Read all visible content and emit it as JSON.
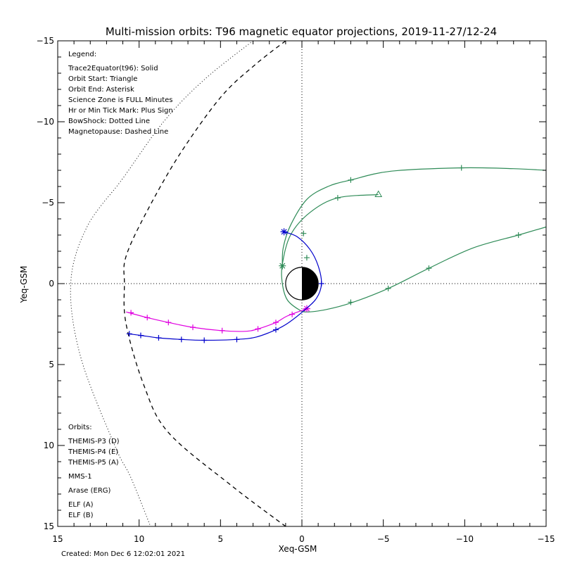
{
  "chart_data": {
    "type": "line",
    "title": "Multi-mission orbits: T96 magnetic equator projections, 2019-11-27/12-24",
    "xlabel": "Xeq-GSM",
    "ylabel": "Yeq-GSM",
    "xlim": [
      15,
      -15
    ],
    "ylim": [
      -15,
      15
    ],
    "x_ticks": [
      15,
      10,
      5,
      0,
      -5,
      -10,
      -15
    ],
    "y_ticks": [
      -15,
      -10,
      -5,
      0,
      5,
      10,
      15
    ],
    "legend_title": "Legend:",
    "legend_lines": [
      "Trace2Equator(t96): Solid",
      "Orbit Start: Triangle",
      "Orbit End: Asterisk",
      "Science Zone is FULL Minutes",
      "Hr or Min Tick Mark: Plus Sign",
      "BowShock: Dotted Line",
      "Magnetopause: Dashed Line"
    ],
    "orbits_title": "Orbits:",
    "orbits": [
      {
        "name": "THEMIS-P3 (D)",
        "color": "#00c8d8"
      },
      {
        "name": "THEMIS-P4 (E)",
        "color": "#0000cc"
      },
      {
        "name": "THEMIS-P5 (A)",
        "color": "#e000e0"
      },
      {
        "name": "MMS-1",
        "color": "#000000"
      },
      {
        "name": "Arase (ERG)",
        "color": "#2e8b57"
      },
      {
        "name": "ELF (A)",
        "color": "#3399ff"
      },
      {
        "name": "ELF (B)",
        "color": "#e01010"
      }
    ],
    "footer": "Created: Mon Dec  6 12:02:01 2021",
    "bow_shock": [
      [
        3.0,
        -15.0
      ],
      [
        6.0,
        -12.6
      ],
      [
        8.5,
        -10.0
      ],
      [
        11.0,
        -6.5
      ],
      [
        13.2,
        -3.5
      ],
      [
        14.2,
        0.0
      ],
      [
        13.6,
        4.5
      ],
      [
        11.5,
        10.0
      ],
      [
        10.5,
        12.0
      ],
      [
        9.3,
        15.0
      ]
    ],
    "magnetopause": [
      [
        1.0,
        -15.0
      ],
      [
        2.9,
        -13.5
      ],
      [
        5.0,
        -11.5
      ],
      [
        7.5,
        -8.0
      ],
      [
        9.5,
        -4.5
      ],
      [
        10.8,
        -1.7
      ],
      [
        10.9,
        0.0
      ],
      [
        10.8,
        2.5
      ],
      [
        9.7,
        6.3
      ],
      [
        8.2,
        9.2
      ],
      [
        4.3,
        12.5
      ],
      [
        1.0,
        15.0
      ]
    ],
    "series": [
      {
        "name": "Arase (ERG)",
        "color": "#2e8b57",
        "points": [
          [
            -4.7,
            -5.5
          ],
          [
            -2.2,
            -5.3
          ],
          [
            -0.5,
            -4.4
          ],
          [
            0.7,
            -3.0
          ],
          [
            1.2,
            -1.2
          ],
          [
            1.2,
            0.0
          ],
          [
            0.9,
            1.0
          ],
          [
            0.2,
            1.6
          ],
          [
            -0.3,
            1.75
          ],
          [
            -1.5,
            1.6
          ],
          [
            -3.0,
            1.2
          ],
          [
            -5.3,
            0.3
          ],
          [
            -7.8,
            -0.95
          ],
          [
            -10.5,
            -2.2
          ],
          [
            -13.3,
            -3.0
          ],
          [
            -15.0,
            -3.5
          ]
        ],
        "ticks": [
          [
            -2.2,
            -5.3
          ],
          [
            -0.3,
            -1.6
          ],
          [
            -3.0,
            1.15
          ],
          [
            -5.3,
            0.3
          ],
          [
            -7.8,
            -0.95
          ],
          [
            -13.3,
            -3.0
          ]
        ],
        "start": [
          -4.7,
          -5.5
        ],
        "end": [
          1.2,
          -1.1
        ]
      },
      {
        "name": "Arase (ERG)",
        "color": "#2e8b57",
        "points": [
          [
            1.2,
            -1.1
          ],
          [
            1.15,
            -2.2
          ],
          [
            0.7,
            -3.6
          ],
          [
            -0.3,
            -5.2
          ],
          [
            -1.6,
            -6.0
          ],
          [
            -3.0,
            -6.4
          ],
          [
            -5.5,
            -6.95
          ],
          [
            -9.8,
            -7.15
          ],
          [
            -13.0,
            -7.1
          ],
          [
            -15.0,
            -7.0
          ]
        ],
        "ticks": [
          [
            -0.1,
            -3.1
          ],
          [
            -3.0,
            -6.4
          ],
          [
            -9.8,
            -7.15
          ]
        ],
        "start": null,
        "end": null
      },
      {
        "name": "THEMIS-P5 (A)",
        "color": "#e000e0",
        "points": [
          [
            10.8,
            1.75
          ],
          [
            9.5,
            2.1
          ],
          [
            8.2,
            2.4
          ],
          [
            6.7,
            2.7
          ],
          [
            5.0,
            2.9
          ],
          [
            3.5,
            2.95
          ],
          [
            2.7,
            2.8
          ],
          [
            1.6,
            2.4
          ],
          [
            0.9,
            2.0
          ],
          [
            -0.3,
            1.55
          ]
        ],
        "ticks": [
          [
            10.5,
            1.8
          ],
          [
            9.5,
            2.1
          ],
          [
            8.2,
            2.4
          ],
          [
            6.7,
            2.7
          ],
          [
            4.9,
            2.9
          ],
          [
            2.7,
            2.8
          ],
          [
            1.6,
            2.4
          ],
          [
            0.6,
            1.9
          ]
        ],
        "start": null,
        "end": [
          -0.3,
          1.55
        ]
      },
      {
        "name": "THEMIS-P4 (E)",
        "color": "#0000cc",
        "points": [
          [
            10.7,
            3.1
          ],
          [
            9.9,
            3.2
          ],
          [
            8.8,
            3.35
          ],
          [
            7.4,
            3.45
          ],
          [
            6.0,
            3.5
          ],
          [
            4.0,
            3.45
          ],
          [
            2.8,
            3.3
          ],
          [
            1.6,
            2.85
          ],
          [
            0.8,
            2.4
          ],
          [
            -0.2,
            1.6
          ],
          [
            -0.9,
            0.9
          ],
          [
            -1.2,
            0.0
          ],
          [
            -1.0,
            -1.1
          ],
          [
            -0.5,
            -2.1
          ],
          [
            0.3,
            -2.9
          ],
          [
            1.1,
            -3.2
          ]
        ],
        "ticks": [
          [
            10.6,
            3.1
          ],
          [
            9.9,
            3.2
          ],
          [
            8.8,
            3.35
          ],
          [
            7.4,
            3.45
          ],
          [
            6.0,
            3.5
          ],
          [
            4.0,
            3.45
          ],
          [
            1.6,
            2.85
          ],
          [
            -1.2,
            0.0
          ]
        ],
        "start": null,
        "end": [
          1.1,
          -3.2
        ]
      }
    ]
  }
}
